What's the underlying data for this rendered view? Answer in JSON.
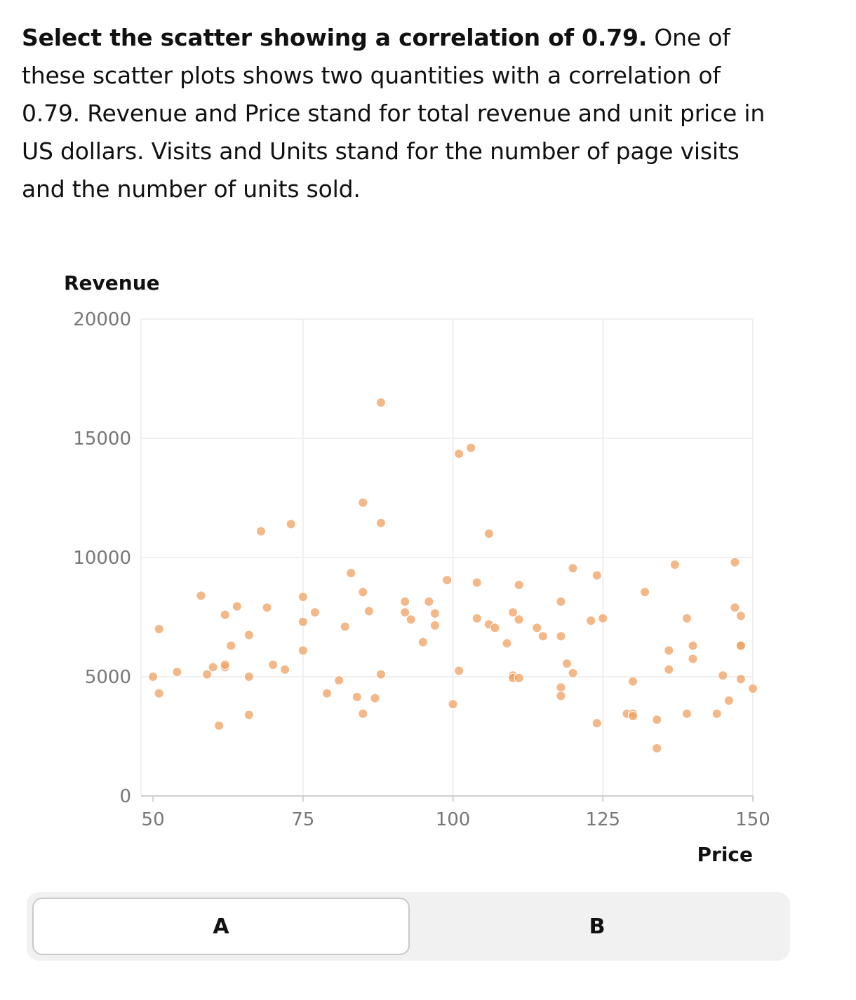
{
  "prompt": {
    "bold": "Select the scatter showing a correlation of 0.79.",
    "rest": " One of these scatter plots shows two quantities with a correlation of 0.79. Revenue and Price stand for total revenue and unit price in US dollars. Visits and Units stand for the number of page visits and the number of units sold."
  },
  "options": {
    "a": "A",
    "b": "B",
    "selected": "A"
  },
  "colors": {
    "point": "#f0a060",
    "grid": "#efefef",
    "axis": "#cfcfcf"
  },
  "chart_data": {
    "type": "scatter",
    "xlabel": "Price",
    "ylabel": "Revenue",
    "xlim": [
      48,
      150
    ],
    "ylim": [
      0,
      20000
    ],
    "xticks": [
      50,
      75,
      100,
      125,
      150
    ],
    "yticks": [
      0,
      5000,
      10000,
      15000,
      20000
    ],
    "grid": true,
    "series": [
      {
        "x": [
          50,
          51,
          51,
          54,
          58,
          59,
          60,
          61,
          62,
          62,
          62,
          63,
          64,
          66,
          66,
          66,
          68,
          69,
          70,
          72,
          73,
          75,
          75,
          75,
          77,
          79,
          81,
          82,
          83,
          84,
          85,
          85,
          85,
          86,
          87,
          88,
          88,
          88,
          92,
          92,
          93,
          95,
          96,
          97,
          97,
          99,
          100,
          101,
          101,
          103,
          104,
          104,
          106,
          106,
          107,
          109,
          110,
          110,
          110,
          111,
          111,
          111,
          114,
          115,
          118,
          118,
          118,
          118,
          119,
          120,
          120,
          123,
          124,
          124,
          125,
          129,
          130,
          130,
          130,
          132,
          134,
          134,
          136,
          136,
          137,
          139,
          139,
          140,
          140,
          144,
          145,
          146,
          147,
          147,
          148,
          148,
          148,
          148,
          150
        ],
        "y": [
          5000,
          7000,
          4300,
          5200,
          8400,
          5100,
          5400,
          2950,
          7600,
          5400,
          5500,
          6300,
          7950,
          6750,
          5000,
          3400,
          11100,
          7900,
          5500,
          5300,
          11400,
          8350,
          7300,
          6100,
          7700,
          4300,
          4850,
          7100,
          9350,
          4150,
          12300,
          8550,
          3450,
          7750,
          4100,
          16500,
          11450,
          5100,
          8150,
          7700,
          7400,
          6450,
          8150,
          7650,
          7150,
          9050,
          3850,
          14350,
          5250,
          14600,
          8950,
          7450,
          11000,
          7200,
          7050,
          6400,
          5050,
          4950,
          7700,
          8850,
          4950,
          7400,
          7050,
          6700,
          8150,
          6700,
          4550,
          4200,
          5550,
          5150,
          9550,
          7350,
          9250,
          3050,
          7450,
          3450,
          3450,
          3350,
          4800,
          8550,
          3200,
          2000,
          6100,
          5300,
          9700,
          7450,
          3450,
          6300,
          5750,
          3450,
          5050,
          4000,
          7900,
          9800,
          7550,
          6300,
          6300,
          4900,
          4500
        ]
      }
    ]
  }
}
